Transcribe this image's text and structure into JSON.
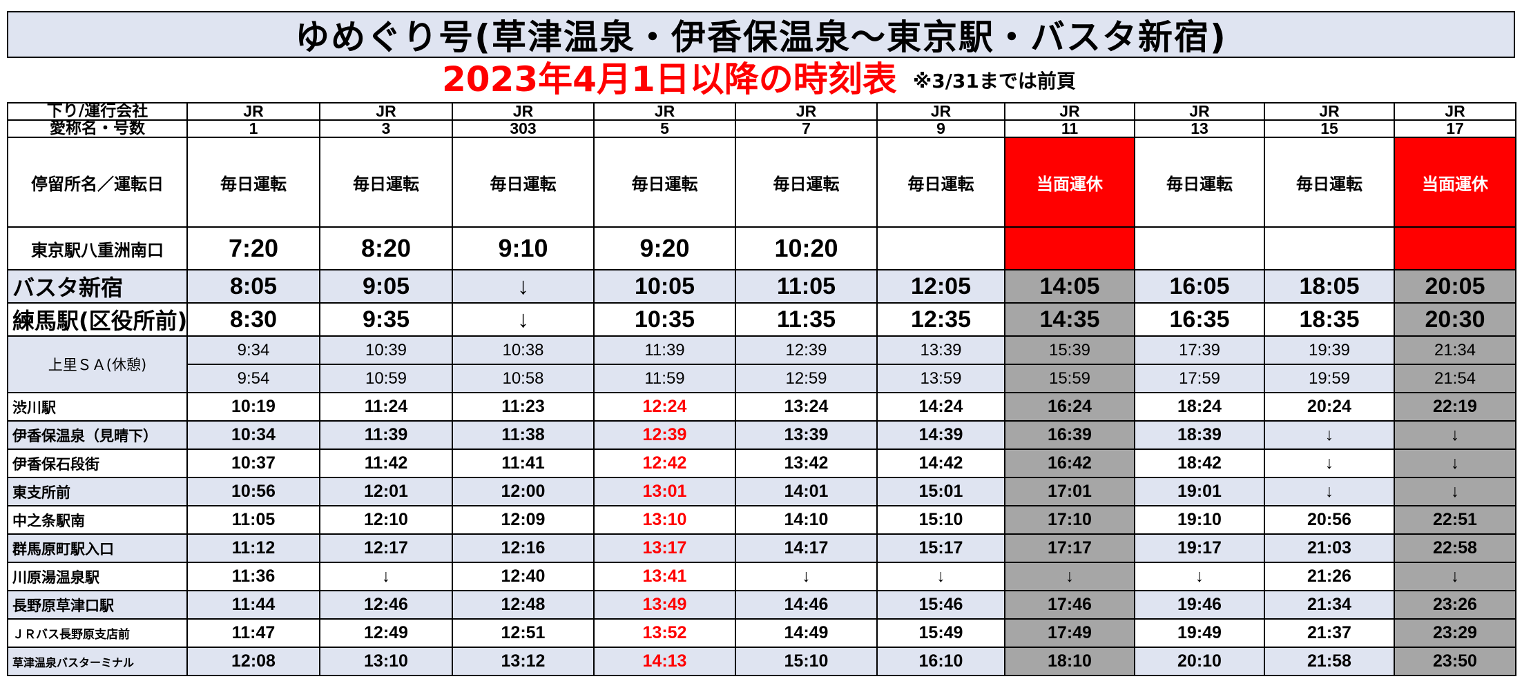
{
  "title": "ゆめぐり号(草津温泉・伊香保温泉～東京駅・バスタ新宿)",
  "subtitle": "2023年4月1日以降の時刻表",
  "note": "※3/31までは前頁",
  "header": {
    "operator_label": "下り/運行会社",
    "number_label": "愛称名・号数",
    "stop_day_label": "停留所名／運転日"
  },
  "columns": [
    {
      "operator": "JR",
      "number": "1",
      "day": "毎日運転"
    },
    {
      "operator": "JR",
      "number": "3",
      "day": "毎日運転"
    },
    {
      "operator": "JR",
      "number": "303",
      "day": "毎日運転"
    },
    {
      "operator": "JR",
      "number": "5",
      "day": "毎日運転"
    },
    {
      "operator": "JR",
      "number": "7",
      "day": "毎日運転"
    },
    {
      "operator": "JR",
      "number": "9",
      "day": "毎日運転"
    },
    {
      "operator": "JR",
      "number": "11",
      "day": "当面運休"
    },
    {
      "operator": "JR",
      "number": "13",
      "day": "毎日運転"
    },
    {
      "operator": "JR",
      "number": "15",
      "day": "毎日運転"
    },
    {
      "operator": "JR",
      "number": "17",
      "day": "当面運休"
    }
  ],
  "rows": [
    {
      "stop": "東京駅八重洲南口",
      "times": [
        "7:20",
        "8:20",
        "9:10",
        "9:20",
        "10:20",
        "",
        "",
        "",
        "",
        ""
      ]
    },
    {
      "stop": "バスタ新宿",
      "times": [
        "8:05",
        "9:05",
        "↓",
        "10:05",
        "11:05",
        "12:05",
        "14:05",
        "16:05",
        "18:05",
        "20:05"
      ]
    },
    {
      "stop": "練馬駅(区役所前)",
      "times": [
        "8:30",
        "9:35",
        "↓",
        "10:35",
        "11:35",
        "12:35",
        "14:35",
        "16:35",
        "18:35",
        "20:30"
      ]
    },
    {
      "stop": "上里ＳＡ(休憩)",
      "times": [
        "9:34",
        "10:39",
        "10:38",
        "11:39",
        "12:39",
        "13:39",
        "15:39",
        "17:39",
        "19:39",
        "21:34"
      ]
    },
    {
      "stop": "",
      "times": [
        "9:54",
        "10:59",
        "10:58",
        "11:59",
        "12:59",
        "13:59",
        "15:59",
        "17:59",
        "19:59",
        "21:54"
      ]
    },
    {
      "stop": "渋川駅",
      "times": [
        "10:19",
        "11:24",
        "11:23",
        "12:24",
        "13:24",
        "14:24",
        "16:24",
        "18:24",
        "20:24",
        "22:19"
      ]
    },
    {
      "stop": "伊香保温泉（見晴下）",
      "times": [
        "10:34",
        "11:39",
        "11:38",
        "12:39",
        "13:39",
        "14:39",
        "16:39",
        "18:39",
        "↓",
        "↓"
      ]
    },
    {
      "stop": "伊香保石段街",
      "times": [
        "10:37",
        "11:42",
        "11:41",
        "12:42",
        "13:42",
        "14:42",
        "16:42",
        "18:42",
        "↓",
        "↓"
      ]
    },
    {
      "stop": "東支所前",
      "times": [
        "10:56",
        "12:01",
        "12:00",
        "13:01",
        "14:01",
        "15:01",
        "17:01",
        "19:01",
        "↓",
        "↓"
      ]
    },
    {
      "stop": "中之条駅南",
      "times": [
        "11:05",
        "12:10",
        "12:09",
        "13:10",
        "14:10",
        "15:10",
        "17:10",
        "19:10",
        "20:56",
        "22:51"
      ]
    },
    {
      "stop": "群馬原町駅入口",
      "times": [
        "11:12",
        "12:17",
        "12:16",
        "13:17",
        "14:17",
        "15:17",
        "17:17",
        "19:17",
        "21:03",
        "22:58"
      ]
    },
    {
      "stop": "川原湯温泉駅",
      "times": [
        "11:36",
        "↓",
        "12:40",
        "13:41",
        "↓",
        "↓",
        "↓",
        "↓",
        "21:26",
        "↓"
      ]
    },
    {
      "stop": "長野原草津口駅",
      "times": [
        "11:44",
        "12:46",
        "12:48",
        "13:49",
        "14:46",
        "15:46",
        "17:46",
        "19:46",
        "21:34",
        "23:26"
      ]
    },
    {
      "stop": "ＪＲバス長野原支店前",
      "times": [
        "11:47",
        "12:49",
        "12:51",
        "13:52",
        "14:49",
        "15:49",
        "17:49",
        "19:49",
        "21:37",
        "23:29"
      ]
    },
    {
      "stop": "草津温泉バスターミナル",
      "times": [
        "12:08",
        "13:10",
        "13:12",
        "14:13",
        "15:10",
        "16:10",
        "18:10",
        "20:10",
        "21:58",
        "23:50"
      ]
    }
  ],
  "colors": {
    "header_shade": "#dfe4f1",
    "suspended_gray": "#a6a6a6",
    "suspended_red": "#ff0000",
    "highlight_text": "#ff0000"
  }
}
